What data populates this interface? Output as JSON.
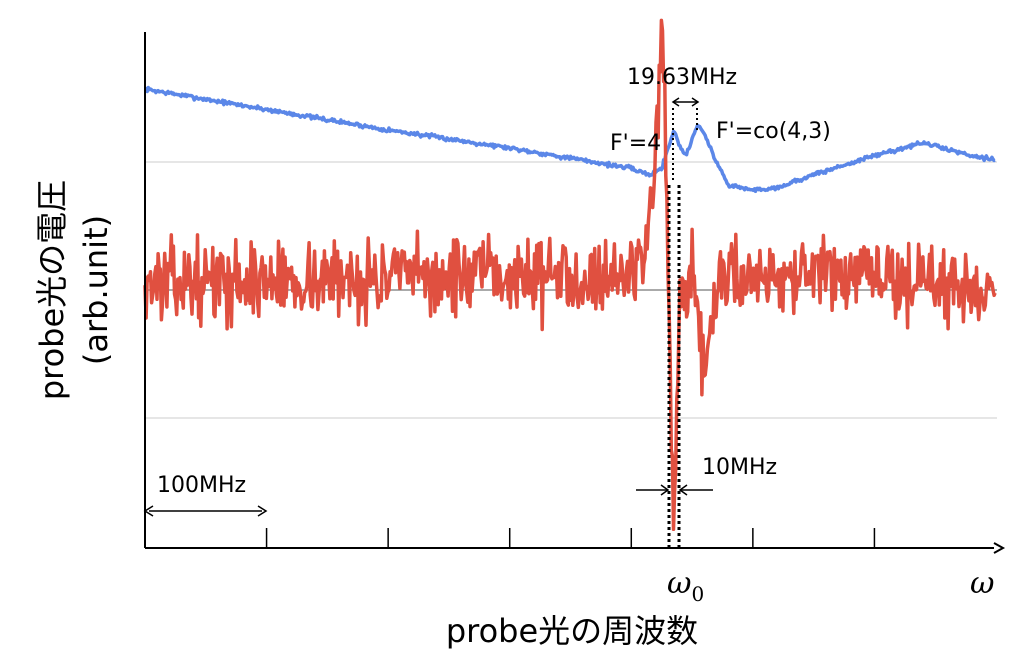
{
  "chart_data": {
    "type": "line",
    "xlabel": "probe光の周波数",
    "ylabel_line1": "probe光の電圧",
    "ylabel_line2": "(arb.unit)",
    "x_axis": {
      "unit": "MHz",
      "range": [
        0,
        700
      ],
      "tick_interval": 100,
      "tick_labels": {
        "omega0": "ω",
        "omega0_sub": "0",
        "omega": "ω"
      },
      "omega0_position_MHz": 435
    },
    "annotations": {
      "scale_bar": "100MHz",
      "peak_spacing": "19.63MHz",
      "peak_left": "F'=4",
      "peak_right": "F'=co(4,3)",
      "width_marker": "10MHz"
    },
    "grid": "horizontal baselines",
    "series": [
      {
        "color": "#5b87e8",
        "seed": 7,
        "noise": 0.008,
        "baseline": 0,
        "x": [
          0,
          50,
          100,
          150,
          200,
          250,
          300,
          350,
          400,
          415,
          425,
          430,
          435,
          440,
          445,
          450,
          455,
          460,
          470,
          480,
          500,
          520,
          550,
          600,
          640,
          660,
          680,
          700
        ],
        "values": [
          0.57,
          0.49,
          0.41,
          0.33,
          0.25,
          0.18,
          0.11,
          0.03,
          -0.05,
          -0.1,
          -0.05,
          0.1,
          0.25,
          0.12,
          0.05,
          0.18,
          0.3,
          0.22,
          0.0,
          -0.18,
          -0.22,
          -0.2,
          -0.1,
          0.05,
          0.15,
          0.1,
          0.05,
          0.02
        ]
      },
      {
        "color": "#e05040",
        "seed": 13,
        "noise": 0.12,
        "baseline": 0,
        "x": [
          0,
          100,
          200,
          300,
          400,
          410,
          415,
          420,
          425,
          428,
          430,
          432,
          435,
          438,
          440,
          445,
          450,
          455,
          460,
          465,
          470,
          480,
          500,
          600,
          700
        ],
        "values": [
          0.05,
          0.06,
          0.08,
          0.09,
          0.1,
          0.25,
          0.5,
          0.9,
          1.6,
          1.2,
          0.2,
          -0.6,
          -1.7,
          -0.8,
          0.05,
          -0.2,
          0.1,
          -0.25,
          -0.5,
          -0.3,
          0.0,
          0.1,
          0.1,
          0.08,
          0.0
        ]
      }
    ]
  }
}
